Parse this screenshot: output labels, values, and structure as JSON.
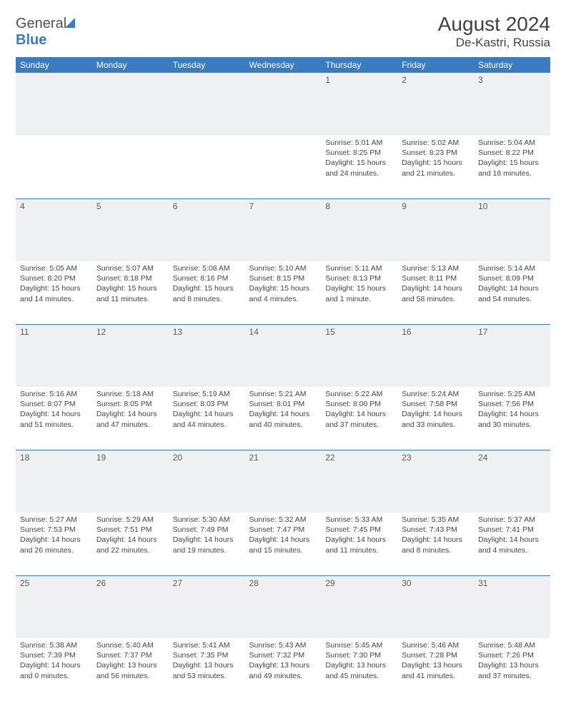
{
  "brand": {
    "part1": "General",
    "part2": "Blue"
  },
  "title": "August 2024",
  "location": "De-Kastri, Russia",
  "colors": {
    "header_bg": "#3b7bbf",
    "header_text": "#ffffff",
    "daynum_bg": "#eef0f2",
    "border": "#3b7bbf",
    "text": "#444444",
    "title_text": "#404040"
  },
  "day_headers": [
    "Sunday",
    "Monday",
    "Tuesday",
    "Wednesday",
    "Thursday",
    "Friday",
    "Saturday"
  ],
  "weeks": [
    [
      null,
      null,
      null,
      null,
      {
        "n": "1",
        "sr": "Sunrise: 5:01 AM",
        "ss": "Sunset: 8:25 PM",
        "d1": "Daylight: 15 hours",
        "d2": "and 24 minutes."
      },
      {
        "n": "2",
        "sr": "Sunrise: 5:02 AM",
        "ss": "Sunset: 8:23 PM",
        "d1": "Daylight: 15 hours",
        "d2": "and 21 minutes."
      },
      {
        "n": "3",
        "sr": "Sunrise: 5:04 AM",
        "ss": "Sunset: 8:22 PM",
        "d1": "Daylight: 15 hours",
        "d2": "and 18 minutes."
      }
    ],
    [
      {
        "n": "4",
        "sr": "Sunrise: 5:05 AM",
        "ss": "Sunset: 8:20 PM",
        "d1": "Daylight: 15 hours",
        "d2": "and 14 minutes."
      },
      {
        "n": "5",
        "sr": "Sunrise: 5:07 AM",
        "ss": "Sunset: 8:18 PM",
        "d1": "Daylight: 15 hours",
        "d2": "and 11 minutes."
      },
      {
        "n": "6",
        "sr": "Sunrise: 5:08 AM",
        "ss": "Sunset: 8:16 PM",
        "d1": "Daylight: 15 hours",
        "d2": "and 8 minutes."
      },
      {
        "n": "7",
        "sr": "Sunrise: 5:10 AM",
        "ss": "Sunset: 8:15 PM",
        "d1": "Daylight: 15 hours",
        "d2": "and 4 minutes."
      },
      {
        "n": "8",
        "sr": "Sunrise: 5:11 AM",
        "ss": "Sunset: 8:13 PM",
        "d1": "Daylight: 15 hours",
        "d2": "and 1 minute."
      },
      {
        "n": "9",
        "sr": "Sunrise: 5:13 AM",
        "ss": "Sunset: 8:11 PM",
        "d1": "Daylight: 14 hours",
        "d2": "and 58 minutes."
      },
      {
        "n": "10",
        "sr": "Sunrise: 5:14 AM",
        "ss": "Sunset: 8:09 PM",
        "d1": "Daylight: 14 hours",
        "d2": "and 54 minutes."
      }
    ],
    [
      {
        "n": "11",
        "sr": "Sunrise: 5:16 AM",
        "ss": "Sunset: 8:07 PM",
        "d1": "Daylight: 14 hours",
        "d2": "and 51 minutes."
      },
      {
        "n": "12",
        "sr": "Sunrise: 5:18 AM",
        "ss": "Sunset: 8:05 PM",
        "d1": "Daylight: 14 hours",
        "d2": "and 47 minutes."
      },
      {
        "n": "13",
        "sr": "Sunrise: 5:19 AM",
        "ss": "Sunset: 8:03 PM",
        "d1": "Daylight: 14 hours",
        "d2": "and 44 minutes."
      },
      {
        "n": "14",
        "sr": "Sunrise: 5:21 AM",
        "ss": "Sunset: 8:01 PM",
        "d1": "Daylight: 14 hours",
        "d2": "and 40 minutes."
      },
      {
        "n": "15",
        "sr": "Sunrise: 5:22 AM",
        "ss": "Sunset: 8:00 PM",
        "d1": "Daylight: 14 hours",
        "d2": "and 37 minutes."
      },
      {
        "n": "16",
        "sr": "Sunrise: 5:24 AM",
        "ss": "Sunset: 7:58 PM",
        "d1": "Daylight: 14 hours",
        "d2": "and 33 minutes."
      },
      {
        "n": "17",
        "sr": "Sunrise: 5:25 AM",
        "ss": "Sunset: 7:56 PM",
        "d1": "Daylight: 14 hours",
        "d2": "and 30 minutes."
      }
    ],
    [
      {
        "n": "18",
        "sr": "Sunrise: 5:27 AM",
        "ss": "Sunset: 7:53 PM",
        "d1": "Daylight: 14 hours",
        "d2": "and 26 minutes."
      },
      {
        "n": "19",
        "sr": "Sunrise: 5:29 AM",
        "ss": "Sunset: 7:51 PM",
        "d1": "Daylight: 14 hours",
        "d2": "and 22 minutes."
      },
      {
        "n": "20",
        "sr": "Sunrise: 5:30 AM",
        "ss": "Sunset: 7:49 PM",
        "d1": "Daylight: 14 hours",
        "d2": "and 19 minutes."
      },
      {
        "n": "21",
        "sr": "Sunrise: 5:32 AM",
        "ss": "Sunset: 7:47 PM",
        "d1": "Daylight: 14 hours",
        "d2": "and 15 minutes."
      },
      {
        "n": "22",
        "sr": "Sunrise: 5:33 AM",
        "ss": "Sunset: 7:45 PM",
        "d1": "Daylight: 14 hours",
        "d2": "and 11 minutes."
      },
      {
        "n": "23",
        "sr": "Sunrise: 5:35 AM",
        "ss": "Sunset: 7:43 PM",
        "d1": "Daylight: 14 hours",
        "d2": "and 8 minutes."
      },
      {
        "n": "24",
        "sr": "Sunrise: 5:37 AM",
        "ss": "Sunset: 7:41 PM",
        "d1": "Daylight: 14 hours",
        "d2": "and 4 minutes."
      }
    ],
    [
      {
        "n": "25",
        "sr": "Sunrise: 5:38 AM",
        "ss": "Sunset: 7:39 PM",
        "d1": "Daylight: 14 hours",
        "d2": "and 0 minutes."
      },
      {
        "n": "26",
        "sr": "Sunrise: 5:40 AM",
        "ss": "Sunset: 7:37 PM",
        "d1": "Daylight: 13 hours",
        "d2": "and 56 minutes."
      },
      {
        "n": "27",
        "sr": "Sunrise: 5:41 AM",
        "ss": "Sunset: 7:35 PM",
        "d1": "Daylight: 13 hours",
        "d2": "and 53 minutes."
      },
      {
        "n": "28",
        "sr": "Sunrise: 5:43 AM",
        "ss": "Sunset: 7:32 PM",
        "d1": "Daylight: 13 hours",
        "d2": "and 49 minutes."
      },
      {
        "n": "29",
        "sr": "Sunrise: 5:45 AM",
        "ss": "Sunset: 7:30 PM",
        "d1": "Daylight: 13 hours",
        "d2": "and 45 minutes."
      },
      {
        "n": "30",
        "sr": "Sunrise: 5:46 AM",
        "ss": "Sunset: 7:28 PM",
        "d1": "Daylight: 13 hours",
        "d2": "and 41 minutes."
      },
      {
        "n": "31",
        "sr": "Sunrise: 5:48 AM",
        "ss": "Sunset: 7:26 PM",
        "d1": "Daylight: 13 hours",
        "d2": "and 37 minutes."
      }
    ]
  ]
}
